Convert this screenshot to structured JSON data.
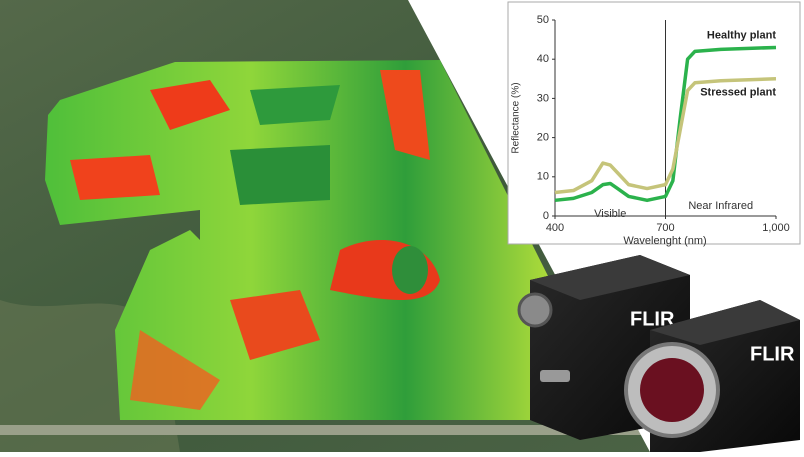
{
  "chart_data": {
    "type": "line",
    "x_label": "Wavelenght (nm)",
    "y_label": "Reflectance (%)",
    "annotations": [
      "Visible",
      "Near Infrared"
    ],
    "vline": 700,
    "x": [
      400,
      450,
      500,
      530,
      550,
      570,
      600,
      650,
      700,
      720,
      740,
      760,
      780,
      850,
      1000
    ],
    "series": [
      {
        "name": "Healthy plant",
        "color": "#2bb24c",
        "values": [
          4,
          4.5,
          6,
          8,
          8.3,
          7,
          5,
          4,
          5,
          9,
          25,
          40,
          42,
          42.5,
          43
        ]
      },
      {
        "name": "Stressed plant",
        "color": "#c5c47a",
        "values": [
          6,
          6.5,
          9,
          13.5,
          13,
          11,
          8,
          7,
          8,
          12,
          22,
          32,
          34,
          34.5,
          35
        ]
      }
    ],
    "xlim": [
      400,
      1000
    ],
    "xticks": [
      400,
      700,
      {
        "value": 1000,
        "label": "1,000"
      }
    ],
    "ylim": [
      0,
      50
    ],
    "yticks": [
      0,
      10,
      20,
      30,
      40,
      50
    ]
  },
  "cameras": [
    {
      "brand": "FLIR"
    },
    {
      "brand": "FLIR"
    }
  ]
}
